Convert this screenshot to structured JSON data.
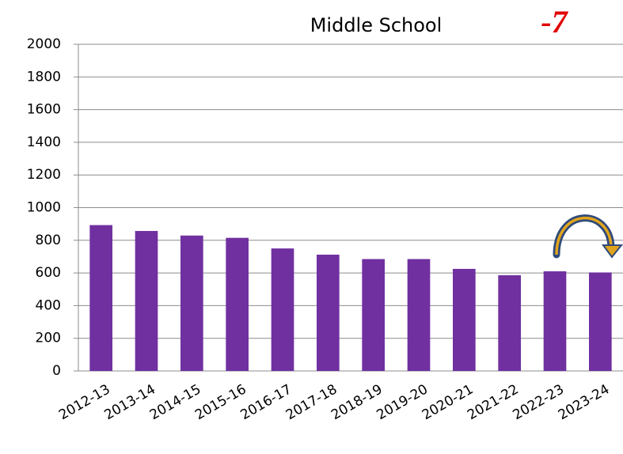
{
  "chart_data": {
    "type": "bar",
    "title": "Middle School",
    "annotation": "-7",
    "categories": [
      "2012-13",
      "2013-14",
      "2014-15",
      "2015-16",
      "2016-17",
      "2017-18",
      "2018-19",
      "2019-20",
      "2020-21",
      "2021-22",
      "2022-23",
      "2023-24"
    ],
    "values": [
      893,
      857,
      829,
      815,
      750,
      712,
      685,
      685,
      625,
      586,
      610,
      603
    ],
    "color": "#7030a0",
    "ylim": [
      0,
      2000
    ],
    "yticks": [
      0,
      200,
      400,
      600,
      800,
      1000,
      1200,
      1400,
      1600,
      1800,
      2000
    ],
    "grid": true
  }
}
